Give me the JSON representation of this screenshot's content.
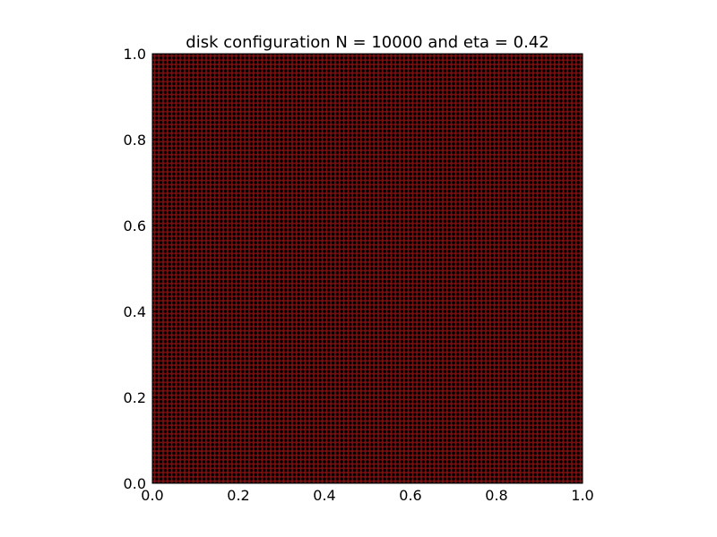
{
  "chart_data": {
    "type": "scatter",
    "title": "disk configuration N = 10000 and eta = 0.42",
    "xlabel": "",
    "ylabel": "",
    "xlim": [
      0.0,
      1.0
    ],
    "ylim": [
      0.0,
      1.0
    ],
    "x_ticks": [
      "0.0",
      "0.2",
      "0.4",
      "0.6",
      "0.8",
      "1.0"
    ],
    "y_ticks": [
      "0.0",
      "0.2",
      "0.4",
      "0.6",
      "0.8",
      "1.0"
    ],
    "grid": false,
    "legend": "none",
    "disk_count": 10000,
    "lattice": "square 100 x 100, periodic",
    "disk_radius": 0.003656,
    "disk_color": "#000000",
    "background_color": "#7a0f0f",
    "gap_color": "#ffffff"
  }
}
